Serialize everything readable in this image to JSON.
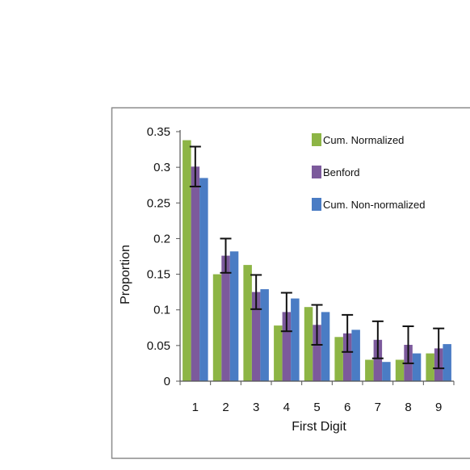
{
  "chart_data": {
    "type": "bar",
    "xlabel": "First Digit",
    "ylabel": "Proportion",
    "categories": [
      "1",
      "2",
      "3",
      "4",
      "5",
      "6",
      "7",
      "8",
      "9"
    ],
    "ylim": [
      0,
      0.35
    ],
    "yticks": [
      "0",
      "0.05",
      "0.1",
      "0.15",
      "0.2",
      "0.25",
      "0.3",
      "0.35"
    ],
    "ytick_values": [
      0,
      0.05,
      0.1,
      0.15,
      0.2,
      0.25,
      0.3,
      0.35
    ],
    "grid": false,
    "legend_position": "top-right",
    "series": [
      {
        "name": "Cum. Normalized",
        "color": "#8db545",
        "values": [
          0.338,
          0.15,
          0.163,
          0.078,
          0.104,
          0.062,
          0.03,
          0.03,
          0.039
        ]
      },
      {
        "name": "Benford",
        "color": "#7c5a9c",
        "values": [
          0.301,
          0.176,
          0.125,
          0.097,
          0.079,
          0.067,
          0.058,
          0.051,
          0.046
        ],
        "error": [
          0.028,
          0.024,
          0.024,
          0.027,
          0.028,
          0.026,
          0.026,
          0.026,
          0.028
        ]
      },
      {
        "name": "Cum. Non-normalized",
        "color": "#4a7cc4",
        "values": [
          0.285,
          0.182,
          0.129,
          0.116,
          0.097,
          0.072,
          0.027,
          0.039,
          0.052
        ]
      }
    ]
  }
}
